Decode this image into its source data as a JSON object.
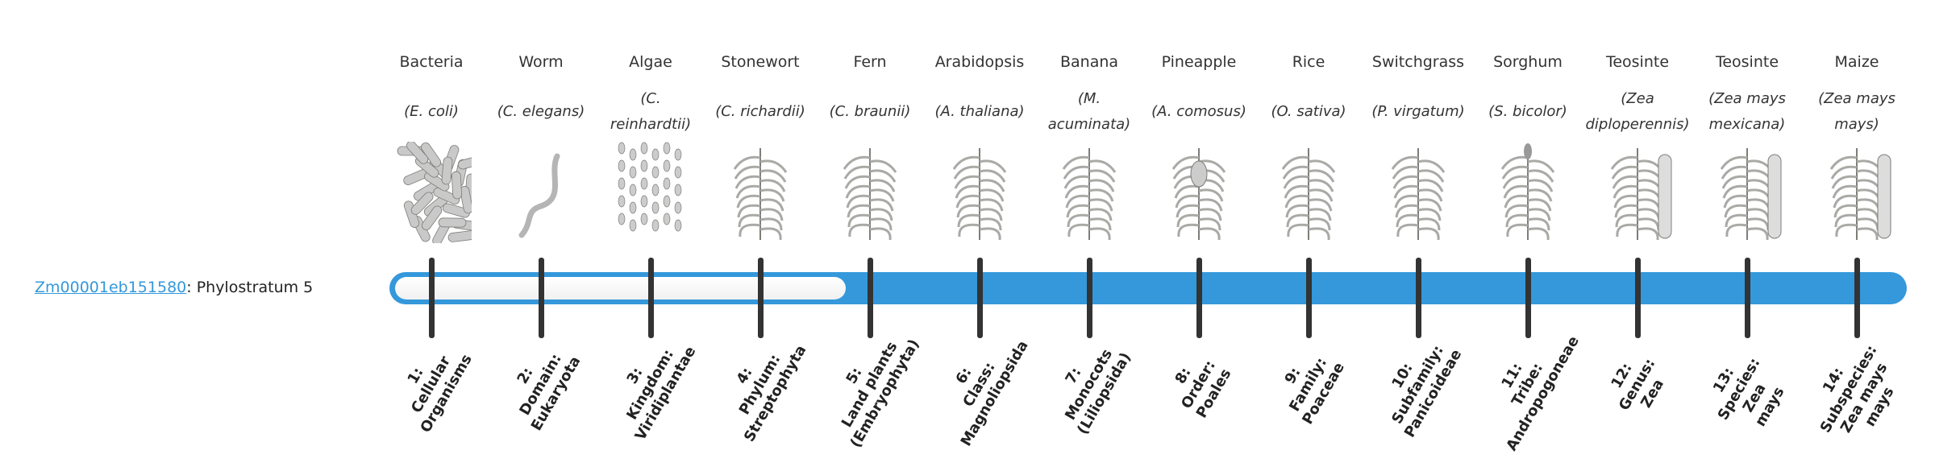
{
  "gene": {
    "id": "Zm00001eb151580",
    "suffix": ": Phylostratum 5"
  },
  "accent_color": "#3498db",
  "phylostratum": {
    "value": 5,
    "total": 14
  },
  "strata": [
    {
      "common": "Bacteria",
      "species": "(E. coli)",
      "icon": "bacteria-icon",
      "rank": "1:\nCellular\nOrganisms"
    },
    {
      "common": "Worm",
      "species": "(C. elegans)",
      "icon": "worm-icon",
      "rank": "2:\nDomain:\nEukaryota"
    },
    {
      "common": "Algae",
      "species": "(C. reinhardtii)",
      "icon": "algae-icon",
      "rank": "3:\nKingdom:\nViridiplantae"
    },
    {
      "common": "Stonewort",
      "species": "(C. richardii)",
      "icon": "stonewort-icon",
      "rank": "4:\nPhylum:\nStreptophyta"
    },
    {
      "common": "Fern",
      "species": "(C. braunii)",
      "icon": "fern-icon",
      "rank": "5:\nLand plants\n(Embryophyta)"
    },
    {
      "common": "Arabidopsis",
      "species": "(A. thaliana)",
      "icon": "arabidopsis-icon",
      "rank": "6:\nClass:\nMagnoliopsida"
    },
    {
      "common": "Banana",
      "species": "(M. acuminata)",
      "icon": "banana-icon",
      "rank": "7:\nMonocots\n(Liliopsida)"
    },
    {
      "common": "Pineapple",
      "species": "(A. comosus)",
      "icon": "pineapple-icon",
      "rank": "8:\nOrder:\nPoales"
    },
    {
      "common": "Rice",
      "species": "(O. sativa)",
      "icon": "rice-icon",
      "rank": "9:\nFamily:\nPoaceae"
    },
    {
      "common": "Switchgrass",
      "species": "(P. virgatum)",
      "icon": "switchgrass-icon",
      "rank": "10:\nSubfamily:\nPanicoideae"
    },
    {
      "common": "Sorghum",
      "species": "(S. bicolor)",
      "icon": "sorghum-icon",
      "rank": "11:\nTribe:\nAndropogoneae"
    },
    {
      "common": "Teosinte",
      "species": "(Zea diploperennis)",
      "icon": "teosinte-icon",
      "rank": "12:\nGenus:\nZea"
    },
    {
      "common": "Teosinte",
      "species": "(Zea mays mexicana)",
      "icon": "teosinte-icon",
      "rank": "13:\nSpecies:\nZea\nmays"
    },
    {
      "common": "Maize",
      "species": "(Zea mays mays)",
      "icon": "maize-icon",
      "rank": "14:\nSubspecies:\nZea mays\nmays"
    }
  ]
}
